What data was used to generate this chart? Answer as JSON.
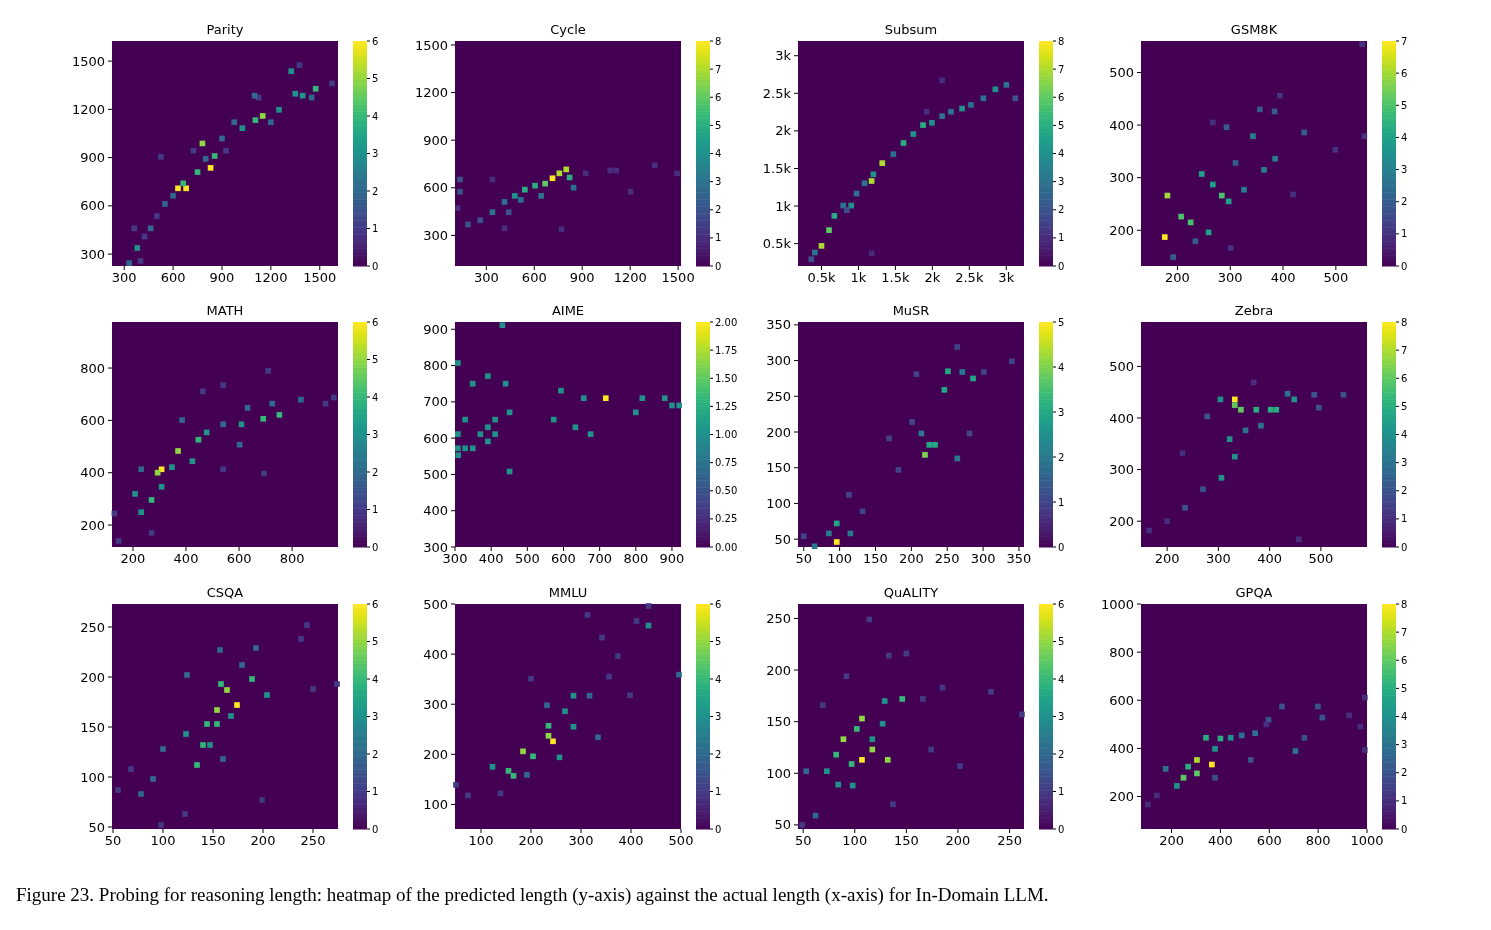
{
  "chart_data": [
    {
      "type": "scatter",
      "title": "Parity",
      "xlim": [
        225,
        1612
      ],
      "ylim": [
        226,
        1625
      ],
      "xticks": [
        300,
        600,
        900,
        1200,
        1500
      ],
      "yticks": [
        300,
        600,
        900,
        1200,
        1500
      ],
      "clim": [
        0,
        6
      ],
      "cticks": [
        0,
        1,
        2,
        3,
        4,
        5,
        6
      ],
      "marker": "square",
      "annotations": [
        "Figure 23. Probing for reasoning length: heatmap of the predicted length (y-axis) against the actual length (x-axis) for In-Domain LLM."
      ],
      "x": [
        630,
        680,
        830,
        1150,
        780,
        855,
        662,
        750,
        1105,
        1475,
        1395,
        1325,
        380,
        330,
        462,
        550,
        1025,
        1250,
        1350,
        425,
        500,
        900,
        975,
        1200,
        1450,
        362,
        400,
        725,
        600,
        800,
        925,
        1125,
        1375,
        1575,
        525,
        1100
      ],
      "values": [
        709,
        709,
        836,
        1159,
        988,
        910,
        740,
        810,
        1133,
        1328,
        1285,
        1437,
        338,
        244,
        460,
        612,
        1083,
        1197,
        1297,
        409,
        536,
        1019,
        1120,
        1120,
        1273,
        460,
        257,
        943,
        663,
        892,
        943,
        1273,
        1475,
        1361,
        905,
        1285
      ],
      "cvalues": [
        6,
        6,
        6,
        5,
        5,
        4,
        4,
        4,
        4,
        4,
        3,
        3,
        3,
        2,
        2,
        2,
        3,
        3,
        3,
        1,
        1,
        2,
        2,
        2,
        2,
        1,
        1,
        1,
        2,
        2,
        1,
        1,
        1,
        1,
        1,
        2
      ]
    },
    {
      "type": "scatter",
      "title": "Cycle",
      "xlim": [
        104,
        1518
      ],
      "ylim": [
        107,
        1525
      ],
      "xticks": [
        300,
        600,
        900,
        1200,
        1500
      ],
      "yticks": [
        300,
        600,
        900,
        1200,
        1500
      ],
      "clim": [
        0,
        8
      ],
      "cticks": [
        0,
        1,
        2,
        3,
        4,
        5,
        6,
        7,
        8
      ],
      "marker": "square",
      "x": [
        714,
        800,
        757,
        668,
        605,
        541,
        478,
        414,
        338,
        262,
        186,
        135,
        122,
        846,
        922,
        1075,
        1202,
        1354,
        1494,
        1113,
        516,
        338,
        135,
        770,
        414,
        440,
        643,
        821
      ],
      "values": [
        660,
        716,
        691,
        626,
        613,
        588,
        549,
        511,
        446,
        395,
        369,
        575,
        472,
        601,
        691,
        709,
        575,
        742,
        691,
        709,
        524,
        652,
        652,
        339,
        344,
        446,
        549,
        665
      ],
      "cvalues": [
        8,
        7,
        7,
        6,
        5,
        5,
        4,
        3,
        3,
        2,
        2,
        2,
        1,
        3,
        1,
        1,
        1,
        1,
        1,
        1,
        3,
        1,
        2,
        1,
        1,
        2,
        3,
        5
      ]
    },
    {
      "type": "scatter",
      "title": "Subsum",
      "xlim": [
        182,
        3240
      ],
      "ylim": [
        202,
        3196
      ],
      "xticks": [
        {
          "value": 500,
          "label": "0.5k"
        },
        {
          "value": 1000,
          "label": "1k"
        },
        {
          "value": 1500,
          "label": "1.5k"
        },
        {
          "value": 2000,
          "label": "2k"
        },
        {
          "value": 2500,
          "label": "2.5k"
        },
        {
          "value": 3000,
          "label": "3k"
        }
      ],
      "yticks": [
        {
          "value": 500,
          "label": "0.5k"
        },
        {
          "value": 1000,
          "label": "1k"
        },
        {
          "value": 1500,
          "label": "1.5k"
        },
        {
          "value": 2000,
          "label": "2k"
        },
        {
          "value": 2500,
          "label": "2.5k"
        },
        {
          "value": 3000,
          "label": "3k"
        }
      ],
      "clim": [
        0,
        8
      ],
      "cticks": [
        0,
        1,
        2,
        3,
        4,
        5,
        6,
        7,
        8
      ],
      "marker": "square",
      "x": [
        500,
        362,
        410,
        602,
        674,
        794,
        902,
        974,
        1082,
        1178,
        1202,
        1322,
        1472,
        1610,
        1742,
        1874,
        1994,
        2132,
        2252,
        2402,
        2522,
        2690,
        2852,
        3002,
        3122,
        1178,
        1922,
        2132,
        842
      ],
      "values": [
        470,
        292,
        381,
        679,
        869,
        1006,
        1006,
        1166,
        1303,
        1333,
        1422,
        1571,
        1690,
        1839,
        1958,
        2077,
        2107,
        2196,
        2255,
        2297,
        2345,
        2434,
        2553,
        2612,
        2434,
        369,
        2255,
        2672,
        946
      ],
      "cvalues": [
        7,
        2,
        3,
        6,
        5,
        3,
        4,
        3,
        3,
        7,
        4,
        7,
        3,
        5,
        4,
        5,
        4,
        3,
        3,
        4,
        3,
        3,
        4,
        3,
        2,
        1,
        1,
        1,
        2
      ]
    },
    {
      "type": "scatter",
      "title": "GSM8K",
      "xlim": [
        131,
        559
      ],
      "ylim": [
        132,
        560
      ],
      "xticks": [
        200,
        300,
        400,
        500
      ],
      "yticks": [
        200,
        300,
        400,
        500
      ],
      "clim": [
        0,
        7
      ],
      "cticks": [
        0,
        1,
        2,
        3,
        4,
        5,
        6,
        7
      ],
      "marker": "square",
      "x": [
        176,
        181,
        207,
        225,
        259,
        267,
        284,
        297,
        246,
        343,
        364,
        385,
        326,
        310,
        293,
        356,
        384,
        440,
        499,
        554,
        419,
        301,
        192,
        234,
        394,
        550,
        267
      ],
      "values": [
        187,
        266,
        226,
        215,
        196,
        287,
        266,
        255,
        307,
        379,
        315,
        336,
        277,
        328,
        396,
        430,
        426,
        386,
        353,
        379,
        268,
        166,
        149,
        179,
        456,
        554,
        405
      ],
      "cvalues": [
        7,
        6,
        5,
        5,
        4,
        4,
        5,
        4,
        4,
        3,
        3,
        3,
        3,
        2,
        2,
        2,
        2,
        2,
        1,
        1,
        1,
        1,
        2,
        2,
        1,
        1,
        1
      ]
    },
    {
      "type": "scatter",
      "title": "MATH",
      "xlim": [
        121,
        973
      ],
      "ylim": [
        116,
        976
      ],
      "xticks": [
        200,
        400,
        600,
        800
      ],
      "yticks": [
        200,
        400,
        600,
        800
      ],
      "clim": [
        0,
        6
      ],
      "cticks": [
        0,
        1,
        2,
        3,
        4,
        5,
        6
      ],
      "marker": "square",
      "x": [
        308,
        293,
        370,
        691,
        752,
        447,
        270,
        231,
        208,
        308,
        347,
        424,
        478,
        540,
        609,
        632,
        725,
        833,
        926,
        957,
        710,
        540,
        463,
        146,
        130,
        231,
        385,
        694,
        540,
        270,
        602
      ],
      "values": [
        413,
        400,
        483,
        606,
        621,
        526,
        296,
        249,
        319,
        346,
        421,
        444,
        554,
        585,
        585,
        648,
        664,
        679,
        664,
        687,
        789,
        734,
        711,
        139,
        244,
        413,
        601,
        397,
        413,
        170,
        507
      ],
      "cvalues": [
        6,
        5,
        5,
        4,
        4,
        4,
        4,
        3,
        3,
        3,
        3,
        3,
        3,
        2,
        3,
        2,
        2,
        2,
        1,
        1,
        1,
        1,
        1,
        1,
        1,
        2,
        2,
        1,
        1,
        1,
        2
      ]
    },
    {
      "type": "scatter",
      "title": "AIME",
      "xlim": [
        300,
        925
      ],
      "ylim": [
        300,
        920
      ],
      "xticks": [
        300,
        400,
        500,
        600,
        700,
        800,
        900
      ],
      "yticks": [
        300,
        400,
        500,
        600,
        700,
        800,
        900
      ],
      "clim": [
        0,
        2
      ],
      "cticks": [
        {
          "value": 0,
          "label": "0.00"
        },
        {
          "value": 0.25,
          "label": "0.25"
        },
        {
          "value": 0.5,
          "label": "0.50"
        },
        {
          "value": 0.75,
          "label": "0.75"
        },
        {
          "value": 1,
          "label": "1.00"
        },
        {
          "value": 1.25,
          "label": "1.25"
        },
        {
          "value": 1.5,
          "label": "1.50"
        },
        {
          "value": 1.75,
          "label": "1.75"
        },
        {
          "value": 2,
          "label": "2.00"
        }
      ],
      "marker": "square",
      "x": [
        308,
        308,
        309,
        308,
        328,
        349,
        328,
        349,
        391,
        370,
        391,
        391,
        411,
        411,
        431,
        440,
        451,
        451,
        573,
        593,
        633,
        656,
        675,
        717,
        800,
        818,
        880,
        900,
        920
      ],
      "values": [
        807,
        611,
        553,
        572,
        572,
        572,
        651,
        750,
        771,
        611,
        630,
        591,
        651,
        611,
        911,
        750,
        671,
        508,
        651,
        731,
        630,
        710,
        611,
        710,
        671,
        710,
        710,
        690,
        690
      ],
      "cvalues": [
        1,
        1,
        1,
        1,
        1,
        1,
        1,
        1,
        1,
        1,
        1,
        1,
        1,
        1,
        1,
        1,
        1,
        1,
        1,
        1,
        1,
        1,
        1,
        2,
        1,
        1,
        1,
        1,
        1
      ]
    },
    {
      "type": "scatter",
      "title": "MuSR",
      "xlim": [
        42,
        357
      ],
      "ylim": [
        39,
        354
      ],
      "xticks": [
        50,
        100,
        150,
        200,
        250,
        300,
        350
      ],
      "yticks": [
        50,
        100,
        150,
        200,
        250,
        300,
        350
      ],
      "clim": [
        0,
        5
      ],
      "cticks": [
        0,
        1,
        2,
        3,
        4,
        5
      ],
      "marker": "square",
      "x": [
        96,
        96,
        85,
        65,
        115,
        219,
        225,
        233,
        214,
        251,
        271,
        246,
        286,
        301,
        264,
        340,
        182,
        169,
        132,
        113,
        207,
        264,
        281,
        201,
        50
      ],
      "values": [
        46,
        72,
        58,
        40,
        58,
        168,
        182,
        182,
        198,
        285,
        284,
        259,
        275,
        284,
        319,
        299,
        147,
        191,
        89,
        112,
        281,
        163,
        198,
        214,
        54
      ],
      "cvalues": [
        5,
        3,
        2,
        2,
        2,
        4,
        3,
        3,
        2,
        3,
        2,
        3,
        3,
        1,
        1,
        1,
        1,
        1,
        1,
        1,
        1,
        2,
        1,
        1,
        1
      ]
    },
    {
      "type": "scatter",
      "title": "Zebra",
      "xlim": [
        149,
        590
      ],
      "ylim": [
        150,
        586
      ],
      "xticks": [
        200,
        300,
        400,
        500
      ],
      "yticks": [
        200,
        300,
        400,
        500
      ],
      "clim": [
        0,
        8
      ],
      "cticks": [
        0,
        1,
        2,
        3,
        4,
        5,
        6,
        7,
        8
      ],
      "marker": "square",
      "x": [
        332,
        332,
        344,
        304,
        374,
        402,
        413,
        448,
        322,
        332,
        306,
        383,
        435,
        487,
        544,
        270,
        235,
        200,
        165,
        369,
        457,
        230,
        353,
        278,
        496
      ],
      "values": [
        436,
        425,
        416,
        436,
        416,
        416,
        416,
        436,
        359,
        325,
        284,
        385,
        447,
        445,
        445,
        262,
        226,
        200,
        182,
        469,
        165,
        332,
        376,
        403,
        420
      ],
      "cvalues": [
        8,
        6,
        6,
        4,
        5,
        5,
        5,
        4,
        4,
        4,
        4,
        3,
        3,
        2,
        2,
        2,
        2,
        1,
        1,
        1,
        1,
        1,
        3,
        2,
        2
      ]
    },
    {
      "type": "scatter",
      "title": "CSQA",
      "xlim": [
        49,
        275
      ],
      "ylim": [
        48,
        273
      ],
      "xticks": [
        50,
        100,
        150,
        200,
        250
      ],
      "yticks": [
        50,
        100,
        150,
        200,
        250
      ],
      "clim": [
        0,
        6
      ],
      "cticks": [
        0,
        1,
        2,
        3,
        4,
        5,
        6
      ],
      "marker": "square",
      "x": [
        174,
        164,
        158,
        154,
        144,
        154,
        140,
        147,
        134,
        189,
        204,
        168,
        123,
        160,
        100,
        78,
        90,
        68,
        55,
        98,
        122,
        199,
        238,
        244,
        250,
        274,
        124,
        193,
        157,
        179
      ],
      "values": [
        172,
        187,
        193,
        167,
        153,
        153,
        132,
        132,
        112,
        198,
        182,
        161,
        143,
        118,
        128,
        83,
        98,
        108,
        87,
        52,
        63,
        77,
        238,
        252,
        188,
        193,
        202,
        229,
        227,
        212
      ],
      "cvalues": [
        6,
        5,
        4,
        5,
        4,
        4,
        4,
        3,
        4,
        4,
        3,
        3,
        3,
        2,
        2,
        2,
        2,
        1,
        1,
        1,
        1,
        1,
        1,
        1,
        1,
        1,
        2,
        2,
        2,
        2
      ]
    },
    {
      "type": "scatter",
      "title": "MMLU",
      "xlim": [
        48,
        500
      ],
      "ylim": [
        51,
        500
      ],
      "xticks": [
        100,
        200,
        300,
        400,
        500
      ],
      "yticks": [
        100,
        200,
        300,
        400,
        500
      ],
      "clim": [
        0,
        6
      ],
      "cticks": [
        0,
        1,
        2,
        3,
        4,
        5,
        6
      ],
      "marker": "square",
      "x": [
        244,
        235,
        184,
        204,
        155,
        165,
        123,
        235,
        285,
        268,
        285,
        257,
        192,
        232,
        334,
        317,
        356,
        435,
        411,
        496,
        435,
        313,
        74,
        50,
        342,
        374,
        398,
        139,
        200
      ],
      "values": [
        226,
        237,
        206,
        196,
        167,
        157,
        175,
        257,
        255,
        286,
        317,
        194,
        159,
        298,
        234,
        317,
        355,
        457,
        466,
        359,
        496,
        478,
        118,
        139,
        433,
        396,
        318,
        122,
        351
      ],
      "cvalues": [
        6,
        5,
        5,
        4,
        4,
        4,
        3,
        4,
        3,
        3,
        3,
        3,
        2,
        2,
        2,
        2,
        1,
        3,
        1,
        2,
        1,
        1,
        1,
        1,
        1,
        1,
        1,
        1,
        1
      ]
    },
    {
      "type": "scatter",
      "title": "QuALITY",
      "xlim": [
        45,
        264
      ],
      "ylim": [
        46,
        264
      ],
      "xticks": [
        50,
        100,
        150,
        200,
        250
      ],
      "yticks": [
        50,
        100,
        150,
        200,
        250
      ],
      "clim": [
        0,
        6
      ],
      "cticks": [
        0,
        1,
        2,
        3,
        4,
        5,
        6
      ],
      "marker": "square",
      "x": [
        107,
        107,
        117,
        132,
        97,
        82,
        89,
        102,
        127,
        146,
        117,
        84,
        73,
        53,
        62,
        98,
        129,
        133,
        150,
        114,
        166,
        185,
        202,
        232,
        262,
        49,
        174,
        69,
        92,
        137
      ],
      "values": [
        113,
        153,
        123,
        113,
        109,
        118,
        133,
        143,
        148,
        172,
        133,
        89,
        102,
        102,
        59,
        88,
        170,
        214,
        216,
        249,
        172,
        183,
        107,
        179,
        157,
        50,
        123,
        166,
        194,
        70
      ],
      "cvalues": [
        6,
        5,
        5,
        5,
        4,
        4,
        5,
        4,
        3,
        4,
        3,
        3,
        3,
        2,
        2,
        3,
        3,
        1,
        1,
        1,
        1,
        1,
        1,
        1,
        1,
        1,
        1,
        1,
        1,
        1
      ]
    },
    {
      "type": "scatter",
      "title": "GPQA",
      "xlim": [
        75,
        1000
      ],
      "ylim": [
        65,
        1000
      ],
      "xticks": [
        200,
        400,
        600,
        800,
        1000
      ],
      "yticks": [
        200,
        400,
        600,
        800,
        1000
      ],
      "clim": [
        0,
        8
      ],
      "cticks": [
        0,
        1,
        2,
        3,
        4,
        5,
        6,
        7,
        8
      ],
      "marker": "square",
      "x": [
        365,
        304,
        304,
        249,
        268,
        341,
        400,
        442,
        378,
        176,
        222,
        487,
        542,
        597,
        707,
        652,
        817,
        799,
        927,
        991,
        991,
        973,
        140,
        103,
        378,
        524,
        744,
        588
      ],
      "values": [
        333,
        352,
        296,
        278,
        324,
        444,
        441,
        444,
        398,
        315,
        244,
        454,
        463,
        519,
        389,
        574,
        528,
        574,
        537,
        393,
        611,
        491,
        204,
        167,
        278,
        352,
        444,
        500
      ],
      "cvalues": [
        8,
        7,
        6,
        6,
        5,
        5,
        5,
        4,
        4,
        3,
        4,
        3,
        3,
        2,
        3,
        2,
        2,
        2,
        1,
        1,
        1,
        1,
        1,
        1,
        2,
        2,
        2,
        1
      ]
    }
  ]
}
